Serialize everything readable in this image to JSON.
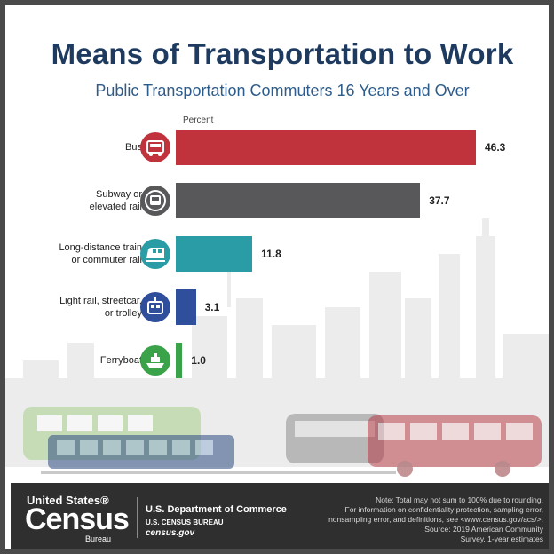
{
  "title": "Means of Transportation to Work",
  "subtitle": "Public Transportation Commuters 16 Years and Over",
  "chart_data": {
    "type": "bar",
    "orientation": "horizontal",
    "title": "Means of Transportation to Work",
    "subtitle": "Public Transportation Commuters 16 Years and Over",
    "value_axis_label": "Percent",
    "categories": [
      [
        "Bus"
      ],
      [
        "Subway or",
        "elevated rail"
      ],
      [
        "Long-distance train",
        "or commuter rail"
      ],
      [
        "Light rail, streetcar,",
        "or trolley"
      ],
      [
        "Ferryboat"
      ]
    ],
    "values": [
      46.3,
      37.7,
      11.8,
      3.1,
      1.0
    ],
    "value_labels": [
      "46.3",
      "37.7",
      "11.8",
      "3.1",
      "1.0"
    ],
    "colors": [
      "#c0323c",
      "#58585a",
      "#2a9ca6",
      "#2f4e9c",
      "#3aa34a"
    ],
    "icons": [
      "bus-icon",
      "subway-icon",
      "train-icon",
      "trolley-icon",
      "ferry-icon"
    ],
    "xlim": [
      0,
      46.3
    ],
    "grid": false,
    "legend": "none"
  },
  "footer": {
    "logo_line1": "United States®",
    "logo_line2": "Census",
    "logo_line3": "Bureau",
    "department": "U.S. Department of Commerce",
    "bureau": "U.S. CENSUS BUREAU",
    "website": "census.gov",
    "note_lines": [
      "Note: Total may not sum to 100% due to rounding.",
      "For information on confidentiality protection, sampling error,",
      "nonsampling error, and definitions, see <www.census.gov/acs/>.",
      "Source: 2019 American Community",
      "Survey, 1-year estimates"
    ]
  }
}
